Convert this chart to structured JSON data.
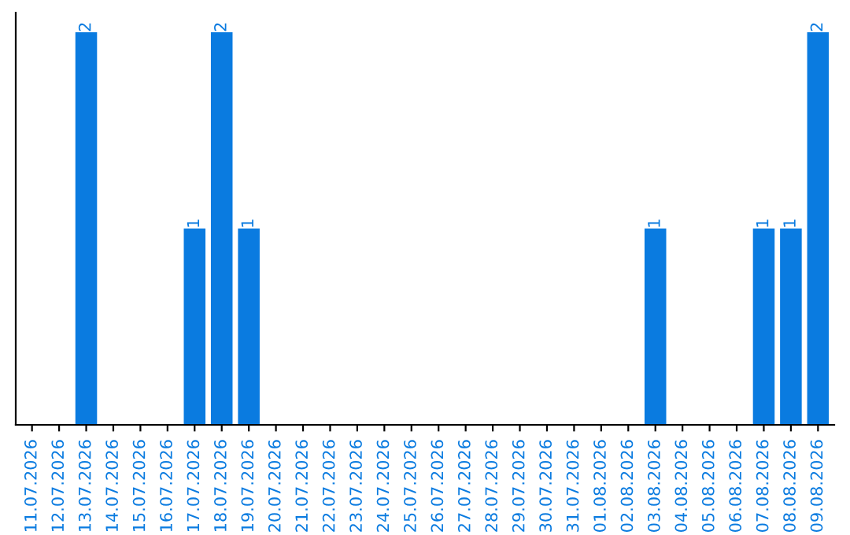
{
  "chart_data": {
    "type": "bar",
    "categories": [
      "11.07.2026",
      "12.07.2026",
      "13.07.2026",
      "14.07.2026",
      "15.07.2026",
      "16.07.2026",
      "17.07.2026",
      "18.07.2026",
      "19.07.2026",
      "20.07.2026",
      "21.07.2026",
      "22.07.2026",
      "23.07.2026",
      "24.07.2026",
      "25.07.2026",
      "26.07.2026",
      "27.07.2026",
      "28.07.2026",
      "29.07.2026",
      "30.07.2026",
      "31.07.2026",
      "01.08.2026",
      "02.08.2026",
      "03.08.2026",
      "04.08.2026",
      "05.08.2026",
      "06.08.2026",
      "07.08.2026",
      "08.08.2026",
      "09.08.2026"
    ],
    "values": [
      0,
      0,
      2,
      0,
      0,
      0,
      1,
      2,
      1,
      0,
      0,
      0,
      0,
      0,
      0,
      0,
      0,
      0,
      0,
      0,
      0,
      0,
      0,
      1,
      0,
      0,
      0,
      1,
      1,
      2
    ],
    "color": "#0a7be0",
    "value_labels": [
      null,
      null,
      "2",
      null,
      null,
      null,
      "1",
      "2",
      "1",
      null,
      null,
      null,
      null,
      null,
      null,
      null,
      null,
      null,
      null,
      null,
      null,
      null,
      null,
      "1",
      null,
      null,
      null,
      "1",
      "1",
      "2"
    ],
    "tick_labels": "x",
    "grid": false,
    "legend": false
  }
}
